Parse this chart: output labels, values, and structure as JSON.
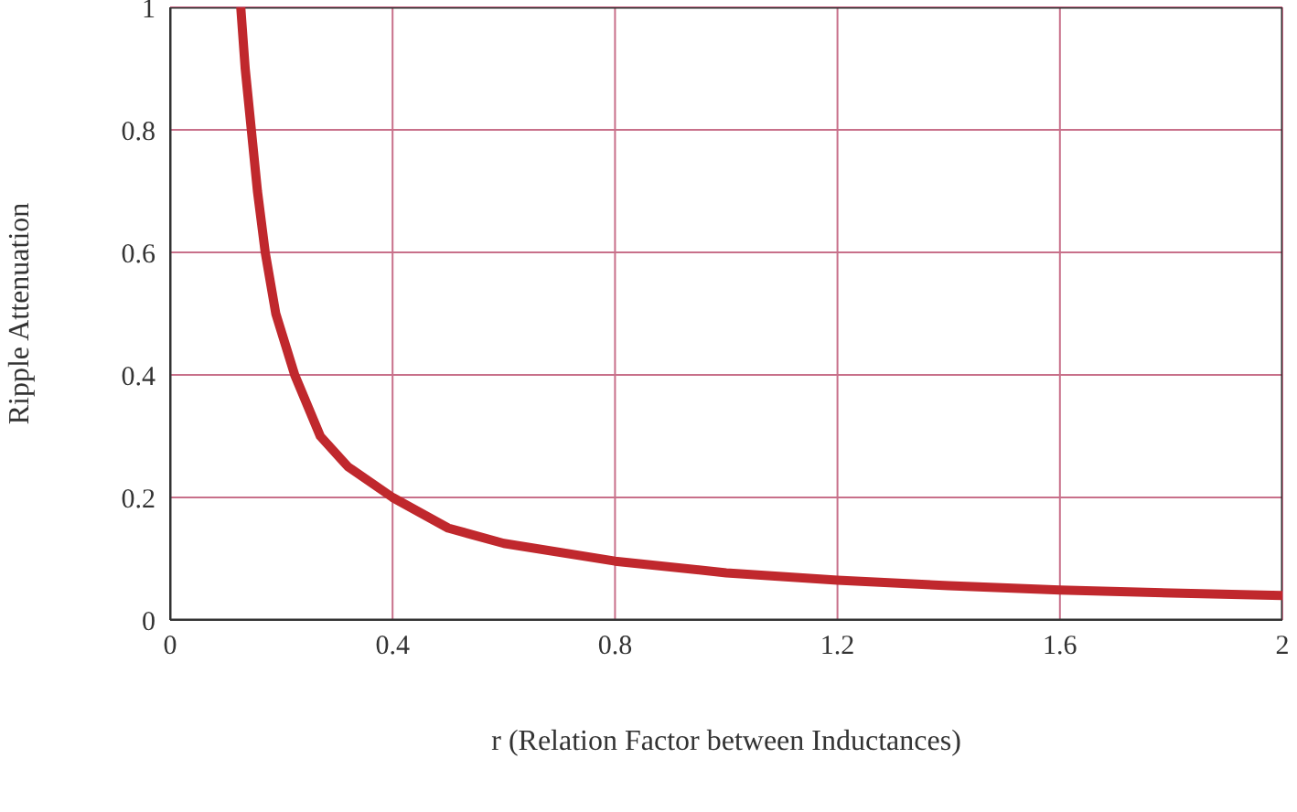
{
  "chart_data": {
    "type": "line",
    "xlabel": "r (Relation Factor between Inductances)",
    "ylabel": "Ripple Attenuation",
    "x": [
      0.127,
      0.135,
      0.146,
      0.157,
      0.171,
      0.19,
      0.224,
      0.27,
      0.32,
      0.4,
      0.5,
      0.6,
      0.8,
      1.0,
      1.2,
      1.4,
      1.6,
      1.8,
      2.0
    ],
    "series": [
      {
        "color": "#c0282d",
        "values": [
          1,
          0.9,
          0.8,
          0.7,
          0.6,
          0.5,
          0.4,
          0.3,
          0.25,
          0.2,
          0.15,
          0.125,
          0.096,
          0.077,
          0.065,
          0.056,
          0.049,
          0.044,
          0.04
        ]
      }
    ],
    "xlim": [
      0,
      2
    ],
    "xticks": [
      0,
      0.4,
      0.8,
      1.2,
      1.6,
      2
    ],
    "ylim": [
      0,
      1
    ],
    "yticks": [
      0,
      0.2,
      0.4,
      0.6,
      0.8,
      1
    ],
    "grid": true
  }
}
